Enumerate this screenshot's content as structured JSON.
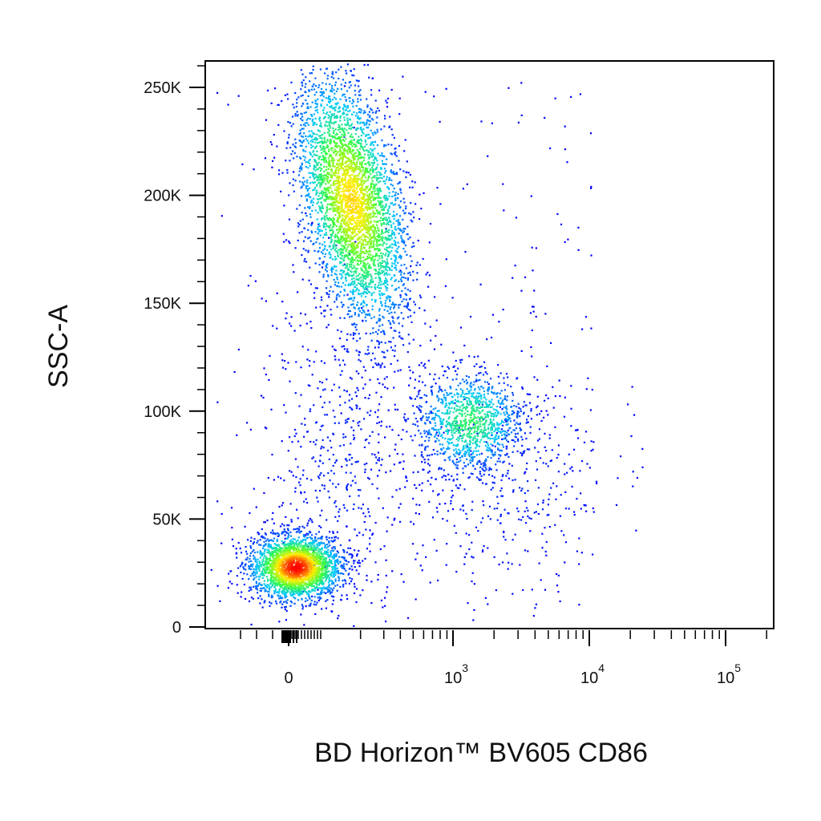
{
  "chart_data": {
    "type": "scatter",
    "title": "",
    "xlabel": "BD Horizon™ BV605 CD86",
    "ylabel": "SSC-A",
    "x_scale": "biexponential",
    "xlim": [
      -500,
      150000
    ],
    "ylim": [
      0,
      262144
    ],
    "grid": false,
    "density_coloring": true,
    "colormap": [
      "#0000ff",
      "#00c8ff",
      "#3cff3c",
      "#ffee00",
      "#ff0000"
    ],
    "x_ticks": [
      {
        "value": 0,
        "base": "0",
        "exp": ""
      },
      {
        "value": 1000,
        "base": "10",
        "exp": "3"
      },
      {
        "value": 10000,
        "base": "10",
        "exp": "4"
      },
      {
        "value": 100000,
        "base": "10",
        "exp": "5"
      }
    ],
    "y_ticks": [
      {
        "value": 0,
        "label": "0"
      },
      {
        "value": 50000,
        "label": "50K"
      },
      {
        "value": 100000,
        "label": "100K"
      },
      {
        "value": 150000,
        "label": "150K"
      },
      {
        "value": 200000,
        "label": "200K"
      },
      {
        "value": 250000,
        "label": "250K"
      }
    ],
    "populations": [
      {
        "center_x": 20,
        "center_y": 28000,
        "sd_x": 70,
        "sd_y": 8000,
        "weight": 0.34
      },
      {
        "center_x": 350,
        "center_y": 195000,
        "sd_x": 160,
        "sd_y": 30000,
        "weight": 0.48
      },
      {
        "center_x": 1300,
        "center_y": 95000,
        "sd_x": 700,
        "sd_y": 14000,
        "weight": 0.13
      },
      {
        "center_x": 2500,
        "center_y": 65000,
        "sd_x": 2500,
        "sd_y": 22000,
        "weight": 0.05
      }
    ]
  }
}
